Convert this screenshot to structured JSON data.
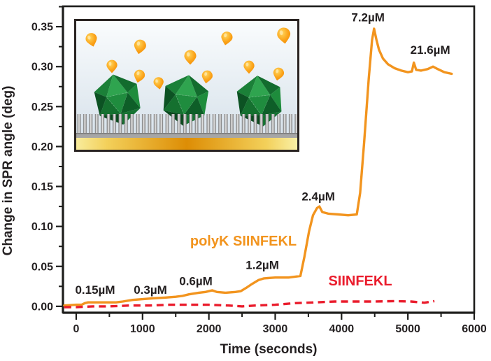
{
  "colors": {
    "polyk_orange": "#F2941E",
    "siinfekl_red": "#EA1C2C",
    "axis_black": "#231F20",
    "frame_black": "#1D1D1B",
    "inset_sky_top": "#FAFCFD",
    "inset_sky_bottom": "#D7E2EB",
    "inset_gold_mid": "#DD8D05",
    "inset_gold_edge": "#F8EC9C",
    "inset_gray_bar": "#A6A6A6",
    "virus_green": "#1E8C3C",
    "droplet_orange": "#FBA41A"
  },
  "chart_data": {
    "type": "line",
    "title": "",
    "xlabel": "Time (seconds)",
    "ylabel": "Change in SPR angle (deg)",
    "xlim": [
      -200,
      6000
    ],
    "ylim": [
      -0.008,
      0.3755
    ],
    "grid": false,
    "x_major_ticks": [
      0,
      1000,
      2000,
      3000,
      4000,
      5000,
      6000
    ],
    "x_minor_ticks": [
      500,
      1500,
      2500,
      3500,
      4500,
      5500
    ],
    "y_major_ticks": [
      0.0,
      0.05,
      0.1,
      0.15,
      0.2,
      0.25,
      0.3,
      0.35
    ],
    "y_minor_ticks": [
      0.025,
      0.075,
      0.125,
      0.175,
      0.225,
      0.275,
      0.325,
      0.375
    ],
    "series": [
      {
        "name": "polyK SIINFEKL",
        "color": "#F2941E",
        "style": "solid",
        "points": [
          [
            -180,
            0.001
          ],
          [
            0,
            0.002
          ],
          [
            80,
            0.002
          ],
          [
            130,
            0.004
          ],
          [
            180,
            0.005
          ],
          [
            400,
            0.005
          ],
          [
            600,
            0.005
          ],
          [
            700,
            0.006
          ],
          [
            850,
            0.008
          ],
          [
            1000,
            0.009
          ],
          [
            1150,
            0.01
          ],
          [
            1350,
            0.011
          ],
          [
            1500,
            0.012
          ],
          [
            1600,
            0.013
          ],
          [
            1700,
            0.015
          ],
          [
            1850,
            0.017
          ],
          [
            1950,
            0.018
          ],
          [
            2050,
            0.02
          ],
          [
            2120,
            0.018
          ],
          [
            2250,
            0.017
          ],
          [
            2400,
            0.018
          ],
          [
            2480,
            0.019
          ],
          [
            2560,
            0.023
          ],
          [
            2650,
            0.028
          ],
          [
            2750,
            0.033
          ],
          [
            2830,
            0.035
          ],
          [
            3000,
            0.036
          ],
          [
            3200,
            0.036
          ],
          [
            3380,
            0.038
          ],
          [
            3440,
            0.062
          ],
          [
            3510,
            0.094
          ],
          [
            3570,
            0.114
          ],
          [
            3630,
            0.123
          ],
          [
            3665,
            0.125
          ],
          [
            3710,
            0.118
          ],
          [
            3800,
            0.116
          ],
          [
            3950,
            0.115
          ],
          [
            4100,
            0.114
          ],
          [
            4230,
            0.115
          ],
          [
            4280,
            0.142
          ],
          [
            4340,
            0.205
          ],
          [
            4410,
            0.285
          ],
          [
            4460,
            0.333
          ],
          [
            4490,
            0.3475
          ],
          [
            4525,
            0.334
          ],
          [
            4565,
            0.321
          ],
          [
            4625,
            0.31
          ],
          [
            4700,
            0.303
          ],
          [
            4800,
            0.298
          ],
          [
            4900,
            0.295
          ],
          [
            5000,
            0.293
          ],
          [
            5060,
            0.294
          ],
          [
            5090,
            0.305
          ],
          [
            5125,
            0.296
          ],
          [
            5200,
            0.295
          ],
          [
            5300,
            0.297
          ],
          [
            5380,
            0.3
          ],
          [
            5450,
            0.297
          ],
          [
            5550,
            0.293
          ],
          [
            5660,
            0.291
          ]
        ]
      },
      {
        "name": "SIINFEKL",
        "color": "#EA1C2C",
        "style": "dashed",
        "points": [
          [
            -180,
            -0.001
          ],
          [
            0,
            -0.001
          ],
          [
            250,
            0.0
          ],
          [
            500,
            0.0
          ],
          [
            800,
            0.001
          ],
          [
            1100,
            0.001
          ],
          [
            1400,
            0.002
          ],
          [
            1700,
            0.002
          ],
          [
            2000,
            0.002
          ],
          [
            2300,
            0.001
          ],
          [
            2500,
            0.0
          ],
          [
            2700,
            0.001
          ],
          [
            3000,
            0.002
          ],
          [
            3300,
            0.004
          ],
          [
            3600,
            0.005
          ],
          [
            3900,
            0.006
          ],
          [
            4200,
            0.006
          ],
          [
            4500,
            0.006
          ],
          [
            4800,
            0.0065
          ],
          [
            5050,
            0.006
          ],
          [
            5250,
            0.0045
          ],
          [
            5400,
            0.0065
          ]
        ]
      }
    ],
    "annotations": [
      {
        "label": "0.15µM",
        "x": 285,
        "y": 0.021
      },
      {
        "label": "0.3µM",
        "x": 1118,
        "y": 0.021
      },
      {
        "label": "0.6µM",
        "x": 1804,
        "y": 0.032
      },
      {
        "label": "1.2µM",
        "x": 2806,
        "y": 0.052
      },
      {
        "label": "2.4µM",
        "x": 3650,
        "y": 0.138
      },
      {
        "label": "7.2µM",
        "x": 4399,
        "y": 0.362
      },
      {
        "label": "21.6µM",
        "x": 5337,
        "y": 0.321
      }
    ],
    "legend": [
      {
        "label": "polyK SIINFEKL",
        "x": 2521,
        "y": 0.082,
        "color": "#F2941E"
      },
      {
        "label": "SIINFEKL",
        "x": 4283,
        "y": 0.032,
        "color": "#EA1C2C"
      }
    ],
    "legend_position": "inside-plot"
  }
}
